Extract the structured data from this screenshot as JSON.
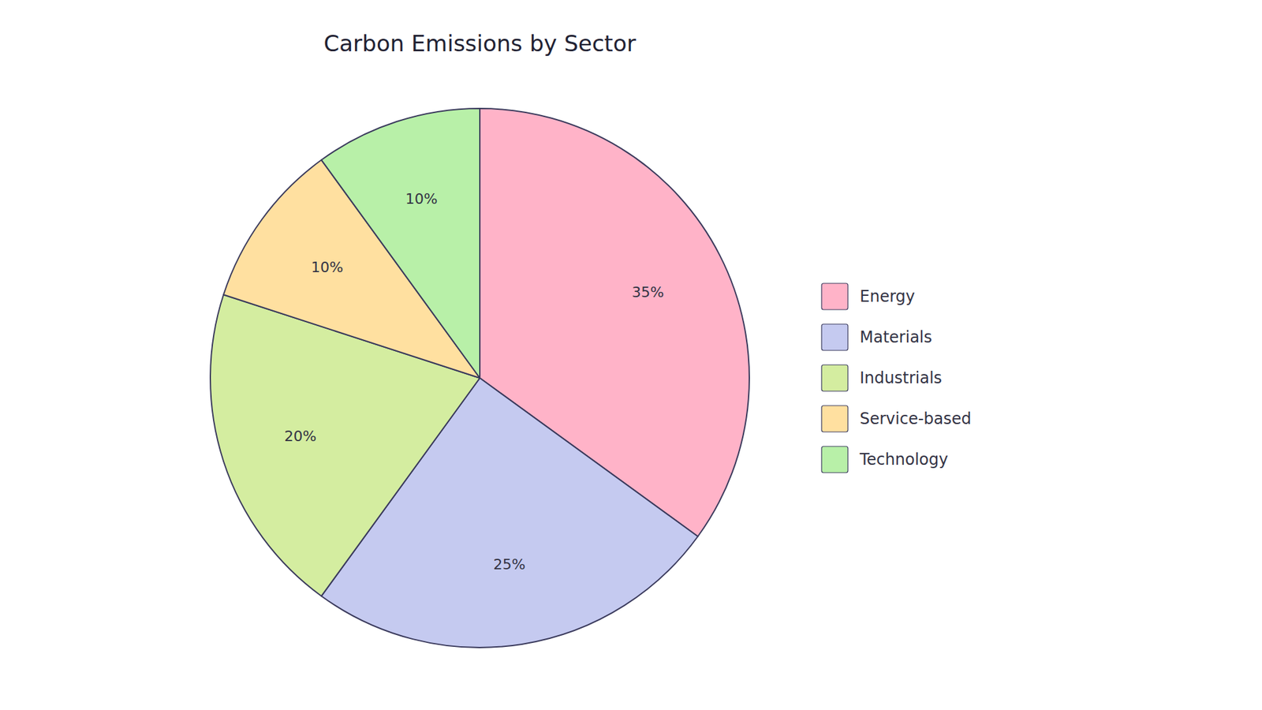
{
  "chart_data": {
    "type": "pie",
    "title": "Carbon Emissions by Sector",
    "categories": [
      "Energy",
      "Materials",
      "Industrials",
      "Service-based",
      "Technology"
    ],
    "values": [
      35,
      25,
      20,
      10,
      10
    ],
    "value_labels": [
      "35%",
      "25%",
      "20%",
      "10%",
      "10%"
    ],
    "colors": [
      "#FFB3C8",
      "#C5CAF0",
      "#D4EDA0",
      "#FFE0A0",
      "#B8F0A8"
    ],
    "data_labels": true,
    "legend": "right"
  }
}
